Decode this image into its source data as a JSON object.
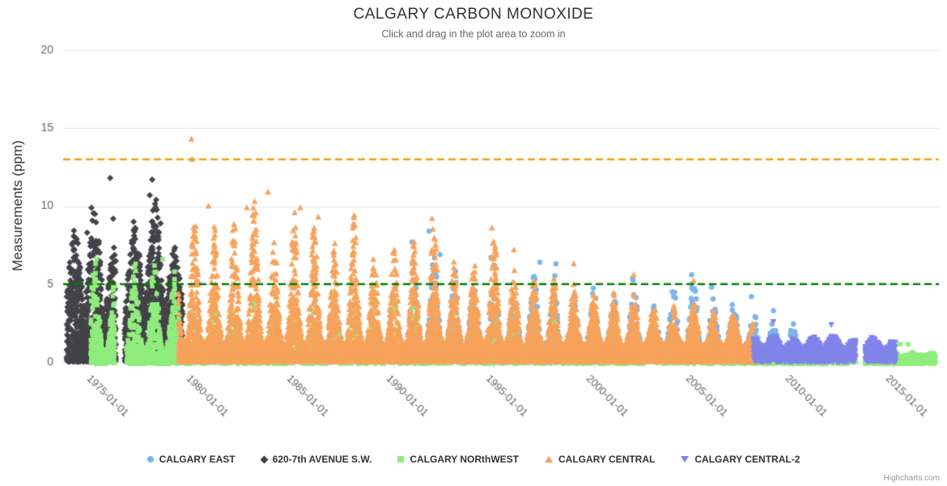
{
  "credit": "Highcharts.com",
  "chart_data": {
    "type": "scatter",
    "title": "CALGARY CARBON MONOXIDE",
    "subtitle": "Click and drag in the plot area to zoom in",
    "ylabel": "Measurements (ppm)",
    "xlabel": "",
    "ylim": [
      0,
      20
    ],
    "yticks": [
      0,
      5,
      10,
      15,
      20
    ],
    "xtick_labels": [
      "1975-01-01",
      "1980-01-01",
      "1985-01-01",
      "1990-01-01",
      "1995-01-01",
      "2000-01-01",
      "2005-01-01",
      "2010-01-01",
      "2015-01-01"
    ],
    "xtick_years": [
      1975,
      1980,
      1985,
      1990,
      1995,
      2000,
      2005,
      2010,
      2015
    ],
    "xlim_years": [
      1973.42,
      2017.29
    ],
    "grid": "horizontal-only",
    "legend_position": "bottom",
    "colors": {
      "grid_line": "#e6e6e6",
      "axis_line": "#ccd6eb",
      "tick_label": "#666666"
    },
    "plot_lines": [
      {
        "value": 13,
        "color": "#f0a113",
        "dashed": true
      },
      {
        "value": 5,
        "color": "#008000",
        "dashed": true
      }
    ],
    "series": [
      {
        "name": "CALGARY EAST",
        "marker": "circle",
        "color": "#7cb5ec",
        "seed": 101,
        "base": 0.8,
        "sigma": 0.17,
        "bias": 1.7,
        "segments": [
          {
            "start": 1990.2,
            "end": 2010.8,
            "per_week": 2
          }
        ],
        "peaks": [
          [
            1990,
            4.0
          ],
          [
            1991,
            6.0
          ],
          [
            1992,
            8.0
          ],
          [
            1993,
            6.5
          ],
          [
            1994,
            5.2
          ],
          [
            1995,
            7.0
          ],
          [
            1996,
            5.4
          ],
          [
            1997,
            5.8
          ],
          [
            1998,
            6.2
          ],
          [
            1999,
            4.4
          ],
          [
            2000,
            4.8
          ],
          [
            2001,
            4.4
          ],
          [
            2002,
            5.4
          ],
          [
            2003,
            4.6
          ],
          [
            2004,
            4.8
          ],
          [
            2005,
            5.6
          ],
          [
            2006,
            4.2
          ],
          [
            2007,
            4.4
          ],
          [
            2008,
            3.6
          ],
          [
            2009,
            3.0
          ],
          [
            2010,
            2.6
          ]
        ],
        "outliers": [
          [
            1990.9,
            7.7
          ],
          [
            1991.75,
            8.4
          ],
          [
            1992.3,
            6.9
          ],
          [
            1994.85,
            6.7
          ],
          [
            1997.3,
            6.4
          ],
          [
            1998.1,
            6.3
          ],
          [
            2001.95,
            5.4
          ],
          [
            2004.9,
            5.6
          ],
          [
            2005.9,
            4.8
          ],
          [
            2007.9,
            4.2
          ],
          [
            2009.0,
            3.3
          ]
        ]
      },
      {
        "name": "620-7th AVENUE S.W.",
        "marker": "diamond",
        "color": "#434348",
        "seed": 202,
        "base": 2.2,
        "sigma": 0.28,
        "bias": 1.7,
        "segments": [
          {
            "start": 1973.6,
            "end": 1976.05,
            "per_week": 7
          },
          {
            "start": 1976.5,
            "end": 1979.4,
            "per_week": 7
          }
        ],
        "peaks": [
          [
            1974,
            8.5
          ],
          [
            1975,
            9.8
          ],
          [
            1976,
            7.5
          ],
          [
            1977,
            9.0
          ],
          [
            1978,
            10.5
          ],
          [
            1979,
            7.5
          ]
        ],
        "outliers": [
          [
            1975.78,
            11.8
          ],
          [
            1977.88,
            11.7
          ],
          [
            1977.76,
            10.7
          ],
          [
            1978.08,
            10.4
          ],
          [
            1974.84,
            9.9
          ],
          [
            1975.93,
            9.2
          ],
          [
            1976.95,
            9.0
          ],
          [
            1974.62,
            8.3
          ],
          [
            1978.3,
            8.9
          ],
          [
            1974.1,
            7.9
          ]
        ]
      },
      {
        "name": "CALGARY NORthWEST",
        "marker": "square",
        "color": "#90ed7d",
        "seed": 303,
        "base": 0.4,
        "sigma": 0.18,
        "bias": 1.9,
        "dip_below_axis": true,
        "segments": [
          {
            "start": 1974.8,
            "end": 1976.0,
            "per_week": 5
          },
          {
            "start": 1976.6,
            "end": 1979.3,
            "per_week": 5
          },
          {
            "start": 1979.3,
            "end": 2008.0,
            "per_week": 2
          },
          {
            "start": 2008.0,
            "end": 2013.1,
            "per_week": 2
          },
          {
            "start": 2013.6,
            "end": 2017.1,
            "per_week": 3
          }
        ],
        "peaks": [
          [
            1975,
            6.6
          ],
          [
            1976,
            5.5
          ],
          [
            1977,
            6.3
          ],
          [
            1978,
            6.6
          ],
          [
            1979,
            5.8
          ],
          [
            1980,
            4.5
          ],
          [
            1982,
            4.0
          ],
          [
            1985,
            3.6
          ],
          [
            1988,
            4.0
          ],
          [
            1990,
            4.6
          ],
          [
            1992,
            4.2
          ],
          [
            1995,
            3.8
          ],
          [
            1998,
            3.0
          ],
          [
            2000,
            2.6
          ],
          [
            2003,
            2.2
          ],
          [
            2005,
            2.0
          ],
          [
            2008,
            1.6
          ],
          [
            2010,
            1.2
          ],
          [
            2012,
            1.0
          ],
          [
            2014,
            0.8
          ],
          [
            2016,
            0.6
          ],
          [
            2017,
            0.6
          ]
        ],
        "outliers": [
          [
            1975.1,
            6.6
          ],
          [
            1977.05,
            6.3
          ],
          [
            1978.4,
            6.6
          ],
          [
            1979.0,
            5.8
          ],
          [
            1990.9,
            4.6
          ],
          [
            2015.35,
            1.15
          ],
          [
            2015.75,
            1.15
          ]
        ]
      },
      {
        "name": "CALGARY CENTRAL",
        "marker": "triangle-up",
        "color": "#f7a35c",
        "seed": 404,
        "base": 1.1,
        "sigma": 0.16,
        "bias": 2.0,
        "segments": [
          {
            "start": 1979.2,
            "end": 2008.0,
            "per_week": 7
          }
        ],
        "peaks": [
          [
            1979,
            9.5
          ],
          [
            1980,
            10.0
          ],
          [
            1981,
            8.8
          ],
          [
            1982,
            9.9
          ],
          [
            1983,
            10.9
          ],
          [
            1984,
            8.0
          ],
          [
            1985,
            9.9
          ],
          [
            1986,
            9.3
          ],
          [
            1987,
            8.0
          ],
          [
            1988,
            9.4
          ],
          [
            1989,
            6.8
          ],
          [
            1990,
            7.4
          ],
          [
            1991,
            7.8
          ],
          [
            1992,
            9.2
          ],
          [
            1993,
            6.4
          ],
          [
            1994,
            6.6
          ],
          [
            1995,
            8.6
          ],
          [
            1996,
            6.0
          ],
          [
            1997,
            5.4
          ],
          [
            1998,
            5.6
          ],
          [
            1999,
            5.0
          ],
          [
            2000,
            4.6
          ],
          [
            2001,
            4.4
          ],
          [
            2002,
            4.6
          ],
          [
            2003,
            3.8
          ],
          [
            2004,
            3.6
          ],
          [
            2005,
            4.0
          ],
          [
            2006,
            3.4
          ],
          [
            2007,
            3.4
          ],
          [
            2008,
            2.6
          ]
        ],
        "outliers": [
          [
            1979.85,
            14.3
          ],
          [
            1979.88,
            13.0
          ],
          [
            1983.68,
            10.9
          ],
          [
            1980.7,
            10.0
          ],
          [
            1982.62,
            9.9
          ],
          [
            1985.3,
            9.9
          ],
          [
            1986.2,
            9.3
          ],
          [
            1988.0,
            9.4
          ],
          [
            1991.9,
            9.2
          ],
          [
            1994.9,
            8.6
          ],
          [
            1996.0,
            7.2
          ],
          [
            1999.0,
            6.3
          ],
          [
            2002.0,
            5.6
          ],
          [
            2005.0,
            5.2
          ]
        ]
      },
      {
        "name": "CALGARY CENTRAL-2",
        "marker": "triangle-down",
        "color": "#8085e9",
        "seed": 505,
        "base": 0.5,
        "sigma": 0.3,
        "bias": 1.0,
        "segments": [
          {
            "start": 2008.0,
            "end": 2013.1,
            "per_week": 6
          },
          {
            "start": 2013.6,
            "end": 2015.1,
            "per_week": 6
          }
        ],
        "peaks": [
          [
            2008,
            1.6
          ],
          [
            2009,
            1.7
          ],
          [
            2010,
            1.5
          ],
          [
            2011,
            1.6
          ],
          [
            2012,
            1.7
          ],
          [
            2013,
            1.4
          ],
          [
            2014,
            1.6
          ],
          [
            2015,
            1.3
          ]
        ],
        "outliers": [
          [
            2009.0,
            2.6
          ],
          [
            2011.9,
            2.4
          ]
        ]
      }
    ]
  }
}
